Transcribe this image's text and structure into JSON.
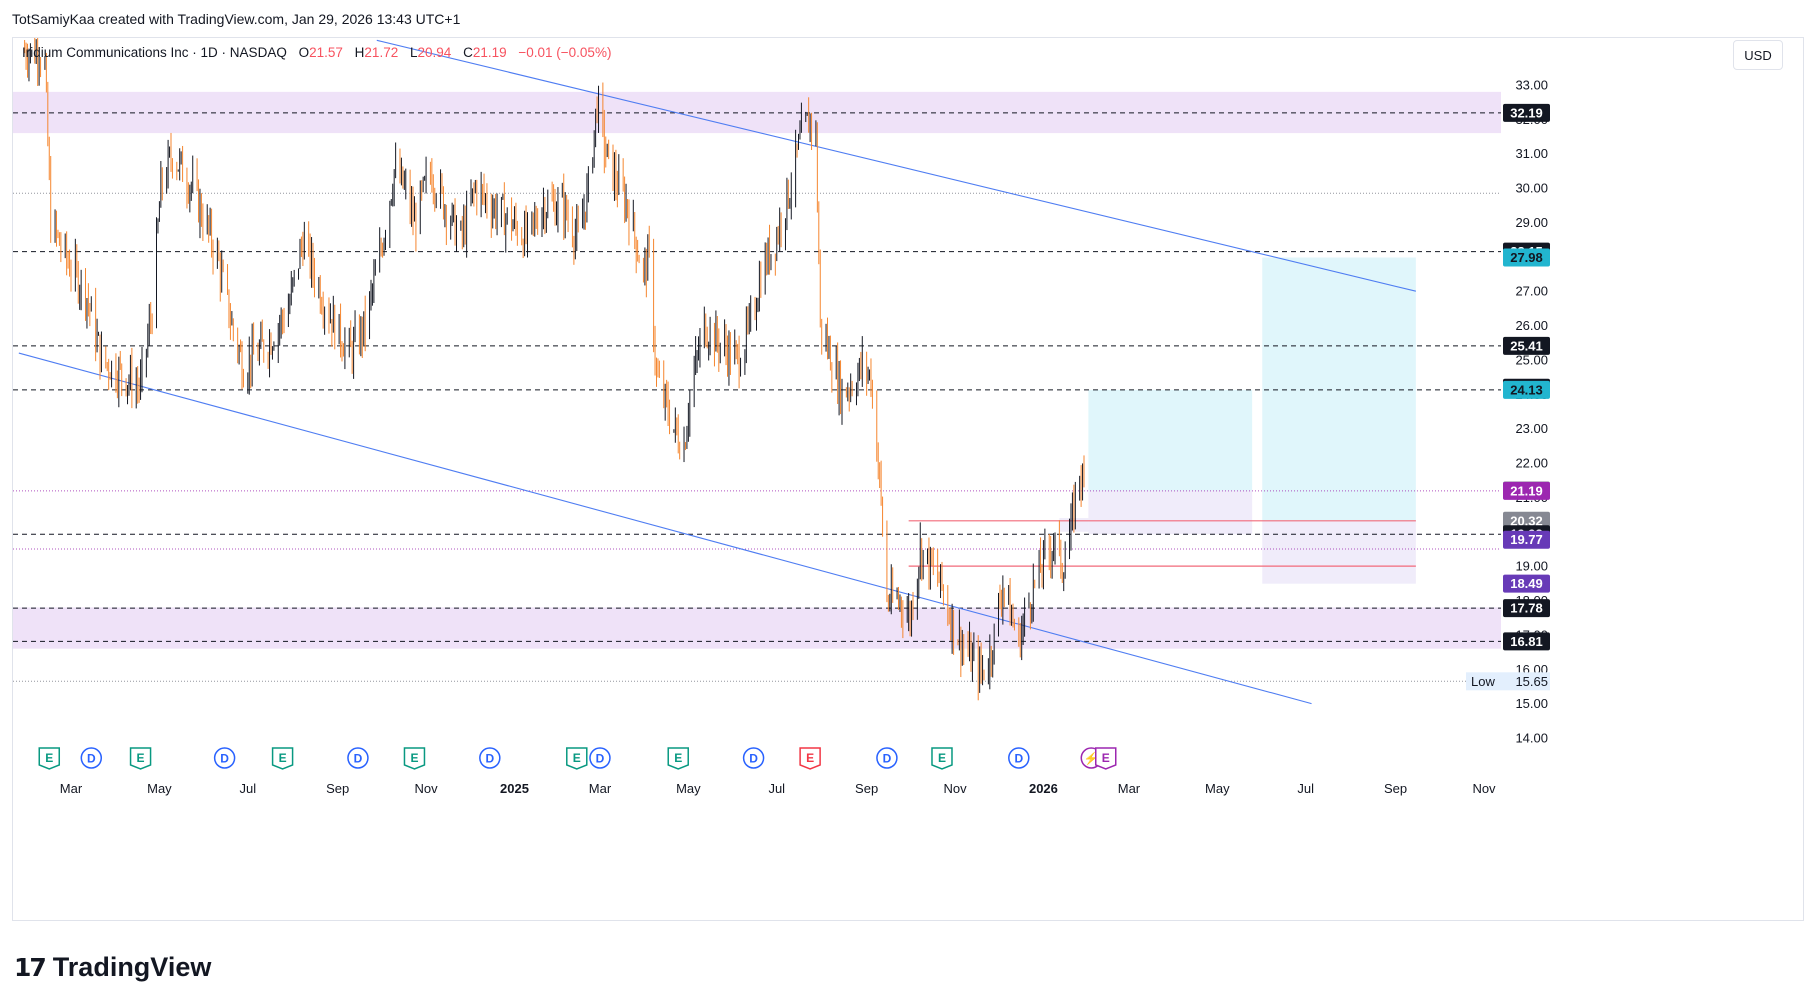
{
  "attribution": "TotSamiyKaa created with TradingView.com, Jan 29, 2026 13:43 UTC+1",
  "legend": {
    "symbol": "Iridium Communications Inc · 1D · NASDAQ",
    "open_label": "O",
    "open": "21.57",
    "high_label": "H",
    "high": "21.72",
    "low_label": "L",
    "low": "20.94",
    "close_label": "C",
    "close": "21.19",
    "change": "−0.01 (−0.05%)"
  },
  "currency": "USD",
  "footer": {
    "logo_mark": "17",
    "brand": "TradingView"
  },
  "colors": {
    "up": "#131722",
    "down": "#f5862f",
    "trendline": "#4f7df2",
    "zone": "#ead8f5",
    "box_cyan": "#c7eef7",
    "box_purple": "#e3ddf5",
    "red_line": "#f26a7a",
    "earnings": "#089981",
    "dividend": "#2962ff"
  },
  "chart_data": {
    "type": "candlestick",
    "title": "Iridium Communications Inc · 1D · NASDAQ",
    "ylim": [
      13.6,
      34.3
    ],
    "ytick_labels": [
      "14.00",
      "15.00",
      "16.00",
      "17.00",
      "18.00",
      "19.00",
      "20.00",
      "21.00",
      "22.00",
      "23.00",
      "24.00",
      "25.00",
      "26.00",
      "27.00",
      "28.00",
      "29.00",
      "30.00",
      "31.00",
      "32.00",
      "33.00"
    ],
    "x_labels": [
      {
        "date": "2024-03-01",
        "label": "Mar",
        "bold": false
      },
      {
        "date": "2024-05-01",
        "label": "May",
        "bold": false
      },
      {
        "date": "2024-07-01",
        "label": "Jul",
        "bold": false
      },
      {
        "date": "2024-09-01",
        "label": "Sep",
        "bold": false
      },
      {
        "date": "2024-11-01",
        "label": "Nov",
        "bold": false
      },
      {
        "date": "2025-01-01",
        "label": "2025",
        "bold": true
      },
      {
        "date": "2025-03-01",
        "label": "Mar",
        "bold": false
      },
      {
        "date": "2025-05-01",
        "label": "May",
        "bold": false
      },
      {
        "date": "2025-07-01",
        "label": "Jul",
        "bold": false
      },
      {
        "date": "2025-09-01",
        "label": "Sep",
        "bold": false
      },
      {
        "date": "2025-11-01",
        "label": "Nov",
        "bold": false
      },
      {
        "date": "2026-01-01",
        "label": "2026",
        "bold": true
      },
      {
        "date": "2026-03-01",
        "label": "Mar",
        "bold": false
      },
      {
        "date": "2026-05-01",
        "label": "May",
        "bold": false
      },
      {
        "date": "2026-07-01",
        "label": "Jul",
        "bold": false
      },
      {
        "date": "2026-09-01",
        "label": "Sep",
        "bold": false
      },
      {
        "date": "2026-11-01",
        "label": "Nov",
        "bold": false
      }
    ],
    "x_range": [
      "2024-01-25",
      "2026-11-25"
    ],
    "price_path": [
      [
        "2024-01-29",
        34.0
      ],
      [
        "2024-02-08",
        34.0
      ],
      [
        "2024-02-12",
        33.5
      ],
      [
        "2024-02-16",
        29.0
      ],
      [
        "2024-02-26",
        28.0
      ],
      [
        "2024-03-11",
        27.0
      ],
      [
        "2024-03-22",
        25.0
      ],
      [
        "2024-04-08",
        24.5
      ],
      [
        "2024-04-18",
        24.2
      ],
      [
        "2024-04-26",
        26.5
      ],
      [
        "2024-05-02",
        30.0
      ],
      [
        "2024-05-10",
        31.0
      ],
      [
        "2024-05-24",
        30.0
      ],
      [
        "2024-06-10",
        28.0
      ],
      [
        "2024-06-20",
        26.0
      ],
      [
        "2024-06-28",
        24.8
      ],
      [
        "2024-07-15",
        25.5
      ],
      [
        "2024-07-29",
        26.5
      ],
      [
        "2024-08-08",
        28.5
      ],
      [
        "2024-08-20",
        27.0
      ],
      [
        "2024-08-30",
        26.0
      ],
      [
        "2024-09-10",
        25.2
      ],
      [
        "2024-09-20",
        26.0
      ],
      [
        "2024-09-30",
        28.0
      ],
      [
        "2024-10-10",
        30.5
      ],
      [
        "2024-10-17",
        30.0
      ],
      [
        "2024-10-24",
        29.0
      ],
      [
        "2024-11-04",
        30.5
      ],
      [
        "2024-11-14",
        29.5
      ],
      [
        "2024-11-25",
        28.5
      ],
      [
        "2024-12-05",
        30.0
      ],
      [
        "2024-12-16",
        29.5
      ],
      [
        "2024-12-30",
        29.0
      ],
      [
        "2025-01-10",
        28.5
      ],
      [
        "2025-01-20",
        29.5
      ],
      [
        "2025-02-03",
        29.5
      ],
      [
        "2025-02-14",
        28.5
      ],
      [
        "2025-02-21",
        30.0
      ],
      [
        "2025-02-27",
        32.5
      ],
      [
        "2025-03-05",
        31.0
      ],
      [
        "2025-03-14",
        30.0
      ],
      [
        "2025-03-20",
        29.5
      ],
      [
        "2025-03-31",
        27.5
      ],
      [
        "2025-04-04",
        28.0
      ],
      [
        "2025-04-09",
        24.5
      ],
      [
        "2025-04-21",
        23.0
      ],
      [
        "2025-04-28",
        22.5
      ],
      [
        "2025-05-02",
        24.0
      ],
      [
        "2025-05-12",
        26.0
      ],
      [
        "2025-05-22",
        25.5
      ],
      [
        "2025-06-04",
        25.0
      ],
      [
        "2025-06-13",
        26.0
      ],
      [
        "2025-06-20",
        27.5
      ],
      [
        "2025-06-30",
        28.5
      ],
      [
        "2025-07-10",
        30.0
      ],
      [
        "2025-07-18",
        31.5
      ],
      [
        "2025-07-24",
        32.0
      ],
      [
        "2025-07-28",
        31.5
      ],
      [
        "2025-07-31",
        26.0
      ],
      [
        "2025-08-08",
        25.0
      ],
      [
        "2025-08-15",
        24.0
      ],
      [
        "2025-08-25",
        24.5
      ],
      [
        "2025-08-29",
        24.8
      ],
      [
        "2025-09-04",
        24.5
      ],
      [
        "2025-09-10",
        21.5
      ],
      [
        "2025-09-15",
        18.0
      ],
      [
        "2025-09-24",
        18.0
      ],
      [
        "2025-10-01",
        17.5
      ],
      [
        "2025-10-08",
        19.5
      ],
      [
        "2025-10-15",
        19.0
      ],
      [
        "2025-10-22",
        18.5
      ],
      [
        "2025-10-29",
        17.5
      ],
      [
        "2025-11-05",
        16.8
      ],
      [
        "2025-11-12",
        16.3
      ],
      [
        "2025-11-19",
        15.9
      ],
      [
        "2025-11-24",
        16.2
      ],
      [
        "2025-11-28",
        17.0
      ],
      [
        "2025-12-04",
        18.5
      ],
      [
        "2025-12-10",
        17.5
      ],
      [
        "2025-12-15",
        16.8
      ],
      [
        "2025-12-19",
        17.5
      ],
      [
        "2025-12-26",
        18.5
      ],
      [
        "2026-01-02",
        19.2
      ],
      [
        "2026-01-08",
        19.7
      ],
      [
        "2026-01-14",
        19.0
      ],
      [
        "2026-01-20",
        20.0
      ],
      [
        "2026-01-23",
        21.0
      ],
      [
        "2026-01-26",
        21.8
      ],
      [
        "2026-01-29",
        21.2
      ]
    ],
    "trendlines": [
      {
        "name": "upper-trendline",
        "from": [
          "2024-09-28",
          34.3
        ],
        "to": [
          "2026-09-15",
          27.0
        ]
      },
      {
        "name": "lower-trendline",
        "from": [
          "2024-01-25",
          25.2
        ],
        "to": [
          "2026-07-05",
          15.0
        ]
      }
    ],
    "zones": [
      {
        "name": "resistance-zone",
        "y1": 31.6,
        "y2": 32.8
      },
      {
        "name": "support-zone",
        "y1": 16.6,
        "y2": 17.8
      }
    ],
    "dashed_levels": [
      32.19,
      28.15,
      25.41,
      24.13,
      19.93,
      17.78,
      16.81
    ],
    "dotted_levels": [
      29.85,
      21.19,
      19.5,
      15.65
    ],
    "boxes": [
      {
        "name": "target-box-1",
        "x1": "2026-02-01",
        "x2": "2026-05-25",
        "y1": 21.2,
        "y2": 24.13,
        "color": "cyan"
      },
      {
        "name": "stop-box-1",
        "x1": "2026-02-01",
        "x2": "2026-05-25",
        "y1": 19.93,
        "y2": 21.2,
        "color": "purple"
      },
      {
        "name": "target-box-2",
        "x1": "2026-06-01",
        "x2": "2026-09-15",
        "y1": 20.32,
        "y2": 27.98,
        "color": "cyan"
      },
      {
        "name": "stop-box-2",
        "x1": "2026-06-01",
        "x2": "2026-09-15",
        "y1": 18.49,
        "y2": 20.32,
        "color": "purple"
      },
      {
        "name": "entry-strip",
        "x1": "2026-01-12",
        "x2": "2026-02-01",
        "y1": 20.0,
        "y2": 20.4,
        "color": "purple"
      }
    ],
    "red_lines": [
      {
        "name": "red-line-upper",
        "x1": "2025-09-30",
        "x2": "2026-09-15",
        "y": 20.32
      },
      {
        "name": "red-line-lower",
        "x1": "2025-09-30",
        "x2": "2026-09-15",
        "y": 19.0
      }
    ],
    "price_tags": [
      {
        "value": 32.19,
        "label": "32.19",
        "bg": "#131722",
        "fg": "#ffffff"
      },
      {
        "value": 28.15,
        "label": "28.15",
        "bg": "#131722",
        "fg": "#ffffff"
      },
      {
        "value": 27.98,
        "label": "27.98",
        "bg": "#22b5cf",
        "fg": "#131722"
      },
      {
        "value": 25.41,
        "label": "25.41",
        "bg": "#131722",
        "fg": "#ffffff"
      },
      {
        "value": 24.19,
        "label": "24.19",
        "bg": "#131722",
        "fg": "#ffffff"
      },
      {
        "value": 24.13,
        "label": "24.13",
        "bg": "#22b5cf",
        "fg": "#131722"
      },
      {
        "value": 21.2,
        "label": "21.20",
        "bg": "#868993",
        "fg": "#ffffff"
      },
      {
        "value": 21.19,
        "label": "21.19",
        "bg": "#9c27b0",
        "fg": "#ffffff"
      },
      {
        "value": 20.32,
        "label": "20.32",
        "bg": "#868993",
        "fg": "#ffffff"
      },
      {
        "value": 19.93,
        "label": "19.93",
        "bg": "#131722",
        "fg": "#ffffff"
      },
      {
        "value": 19.77,
        "label": "19.77",
        "bg": "#673ab7",
        "fg": "#ffffff"
      },
      {
        "value": 18.49,
        "label": "18.49",
        "bg": "#673ab7",
        "fg": "#ffffff"
      },
      {
        "value": 17.78,
        "label": "17.78",
        "bg": "#131722",
        "fg": "#ffffff"
      },
      {
        "value": 16.81,
        "label": "16.81",
        "bg": "#131722",
        "fg": "#ffffff"
      }
    ],
    "low_marker": {
      "label": "Low",
      "value": 15.65,
      "text": "15.65"
    },
    "events": [
      {
        "type": "E",
        "date": "2024-02-15"
      },
      {
        "type": "D",
        "date": "2024-03-15"
      },
      {
        "type": "E",
        "date": "2024-04-18"
      },
      {
        "type": "D",
        "date": "2024-06-15"
      },
      {
        "type": "E",
        "date": "2024-07-25"
      },
      {
        "type": "D",
        "date": "2024-09-15"
      },
      {
        "type": "E",
        "date": "2024-10-24"
      },
      {
        "type": "D",
        "date": "2024-12-15"
      },
      {
        "type": "E",
        "date": "2025-02-13"
      },
      {
        "type": "D",
        "date": "2025-03-01"
      },
      {
        "type": "E",
        "date": "2025-04-24"
      },
      {
        "type": "D",
        "date": "2025-06-15"
      },
      {
        "type": "E-red",
        "date": "2025-07-24"
      },
      {
        "type": "D",
        "date": "2025-09-15"
      },
      {
        "type": "E",
        "date": "2025-10-23"
      },
      {
        "type": "D",
        "date": "2025-12-15"
      },
      {
        "type": "split",
        "date": "2026-02-03"
      },
      {
        "type": "E-purple",
        "date": "2026-02-13"
      }
    ]
  }
}
